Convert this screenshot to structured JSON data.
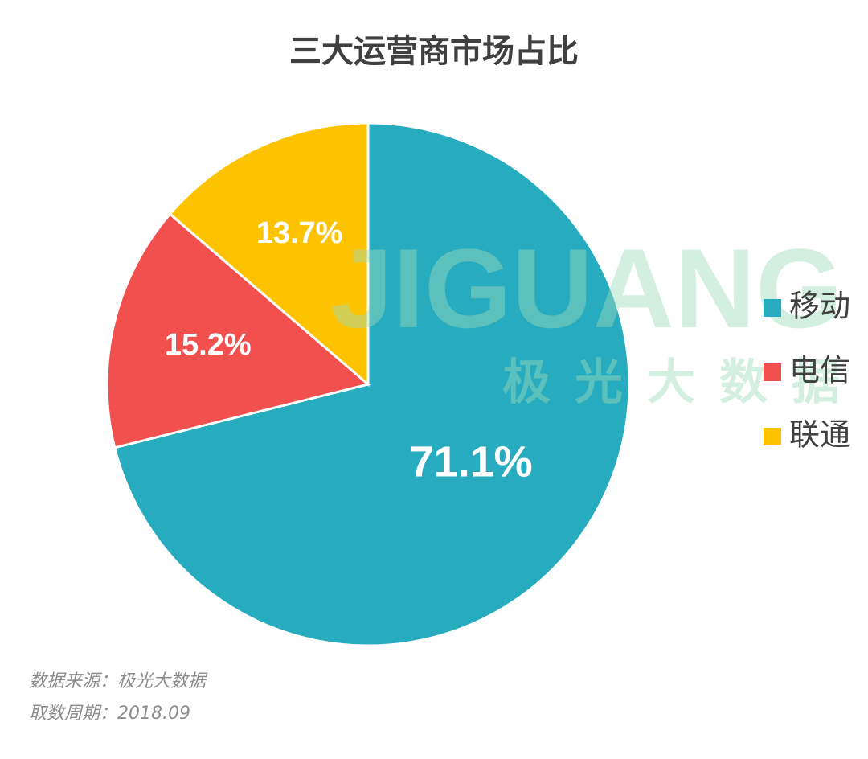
{
  "chart_data": {
    "type": "pie",
    "title": "三大运营商市场占比",
    "categories": [
      "移动",
      "电信",
      "联通"
    ],
    "values": [
      71.1,
      15.2,
      13.7
    ],
    "value_labels": [
      "71.1%",
      "15.2%",
      "13.7%"
    ],
    "colors": [
      "#26abbf",
      "#f24f4f",
      "#fdc300"
    ],
    "legend": "right",
    "watermark": {
      "text": "JIGUANG",
      "subtext": "极光大数据"
    },
    "notes": [
      "数据来源：极光大数据",
      "取数周期：2018.09"
    ]
  }
}
